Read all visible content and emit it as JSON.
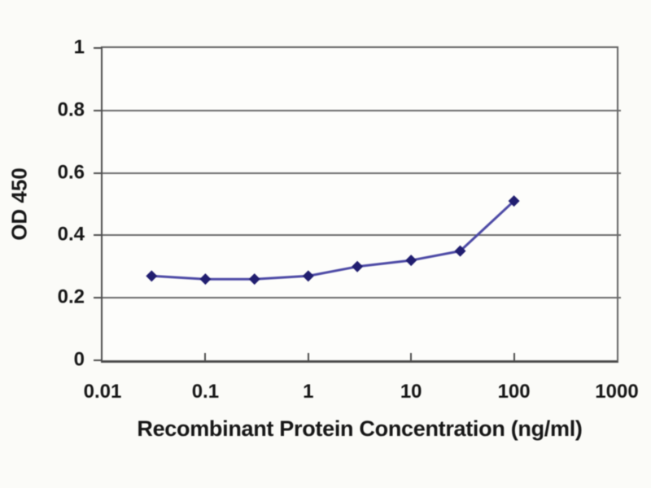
{
  "colors": {
    "background": "#fbfbf8",
    "plot_background": "#fdfdfb",
    "frame": "#636363",
    "axis": "#4c4c4c",
    "gridline": "#6a6a6a",
    "line": "#4c49a5",
    "marker": "#211e70",
    "text": "#161616"
  },
  "chart_data": {
    "type": "line",
    "title": "",
    "xlabel": "Recombinant Protein Concentration (ng/ml)",
    "ylabel": "OD 450",
    "x_scale": "log",
    "xlim": [
      0.01,
      1000
    ],
    "ylim": [
      0,
      1
    ],
    "grid": "horizontal",
    "legend": "none",
    "x_ticks": [
      {
        "value": 0.01,
        "label": "0.01"
      },
      {
        "value": 0.1,
        "label": "0.1"
      },
      {
        "value": 1,
        "label": "1"
      },
      {
        "value": 10,
        "label": "10"
      },
      {
        "value": 100,
        "label": "100"
      },
      {
        "value": 1000,
        "label": "1000"
      }
    ],
    "y_ticks": [
      {
        "value": 0,
        "label": "0"
      },
      {
        "value": 0.2,
        "label": "0.2"
      },
      {
        "value": 0.4,
        "label": "0.4"
      },
      {
        "value": 0.6,
        "label": "0.6"
      },
      {
        "value": 0.8,
        "label": "0.8"
      },
      {
        "value": 1,
        "label": "1"
      }
    ],
    "series": [
      {
        "name": "OD 450",
        "marker": "diamond",
        "x": [
          0.03,
          0.1,
          0.3,
          1,
          3,
          10,
          30,
          100
        ],
        "y": [
          0.27,
          0.26,
          0.26,
          0.27,
          0.3,
          0.32,
          0.35,
          0.51
        ]
      }
    ]
  }
}
